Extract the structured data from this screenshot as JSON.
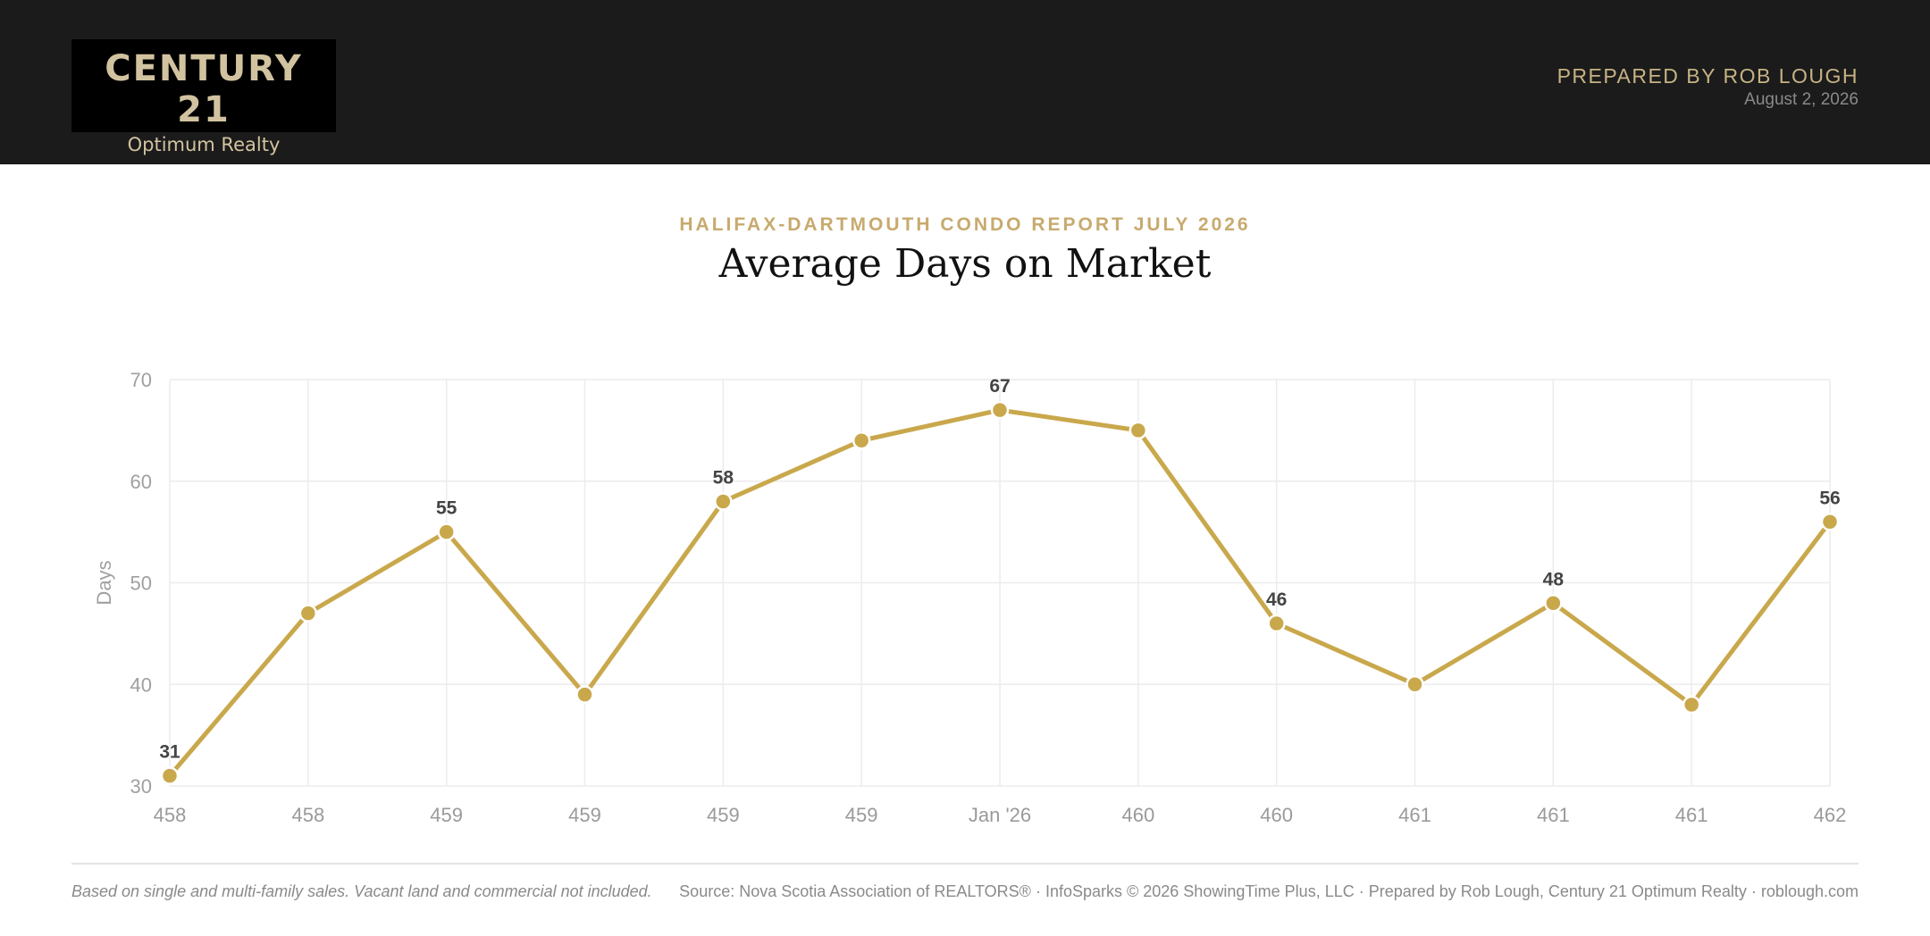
{
  "header": {
    "logo_name": "CENTURY 21",
    "logo_tagline": "Optimum Realty",
    "prepared_by": "PREPARED BY ROB LOUGH",
    "date": "August 2, 2026"
  },
  "report_title": "HALIFAX-DARTMOUTH CONDO REPORT JULY 2026",
  "colors": {
    "line": "#c9a84c",
    "grid": "#ececec",
    "header_bg": "#1b1b1b",
    "accent": "#c7aa6e"
  },
  "chart_data": {
    "type": "line",
    "title": "Average Days on Market",
    "ylabel": "Days",
    "xlabel": "",
    "ylim": [
      30,
      70
    ],
    "yticks": [
      30,
      40,
      50,
      60,
      70
    ],
    "grid": true,
    "categories": [
      "458",
      "458",
      "459",
      "459",
      "459",
      "459",
      "Jan '26",
      "460",
      "460",
      "461",
      "461",
      "461",
      "462"
    ],
    "series": [
      {
        "values": [
          31,
          47,
          55,
          39,
          58,
          64,
          67,
          65,
          46,
          40,
          48,
          38,
          56
        ]
      }
    ],
    "labeled_points": [
      0,
      2,
      4,
      6,
      8,
      10,
      12
    ]
  },
  "footer": {
    "note": "Based on single and multi-family sales. Vacant land and commercial not included.",
    "source": "Source: Nova Scotia Association of REALTORS® · InfoSparks © 2026 ShowingTime Plus, LLC · Prepared by Rob Lough, Century 21 Optimum Realty · roblough.com"
  }
}
